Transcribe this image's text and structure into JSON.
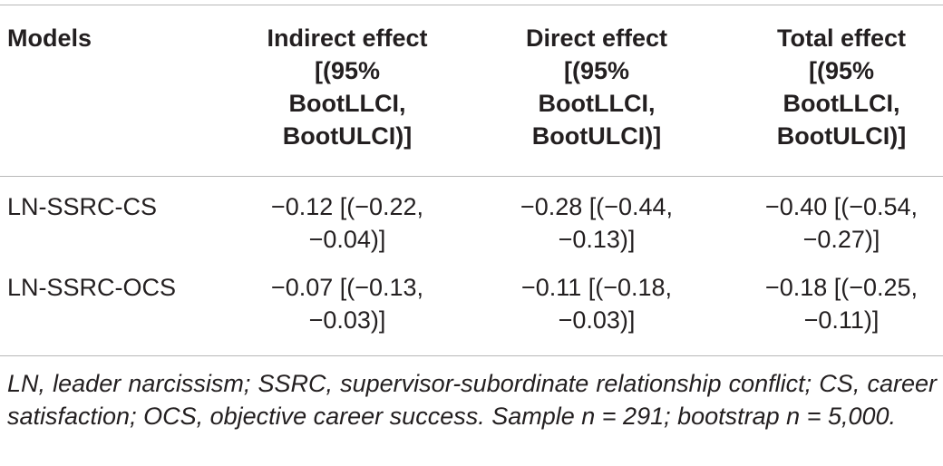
{
  "table": {
    "headers": [
      "Models",
      "Indirect effect\n[(95%\nBootLLCI,\nBootULCI)]",
      "Direct effect\n[(95%\nBootLLCI,\nBootULCI)]",
      "Total effect\n[(95%\nBootLLCI,\nBootULCI)]"
    ],
    "rows": [
      {
        "model": "LN-SSRC-CS",
        "indirect": "−0.12 [(−0.22,\n−0.04)]",
        "direct": "−0.28 [(−0.44,\n−0.13)]",
        "total": "−0.40 [(−0.54,\n−0.27)]"
      },
      {
        "model": "LN-SSRC-OCS",
        "indirect": "−0.07 [(−0.13,\n−0.03)]",
        "direct": "−0.11 [(−0.18,\n−0.03)]",
        "total": "−0.18 [(−0.25,\n−0.11)]"
      }
    ],
    "footnote": "LN, leader narcissism; SSRC, supervisor-subordinate relationship conflict; CS, career satisfaction; OCS, objective career success. Sample n = 291; bootstrap n = 5,000."
  }
}
